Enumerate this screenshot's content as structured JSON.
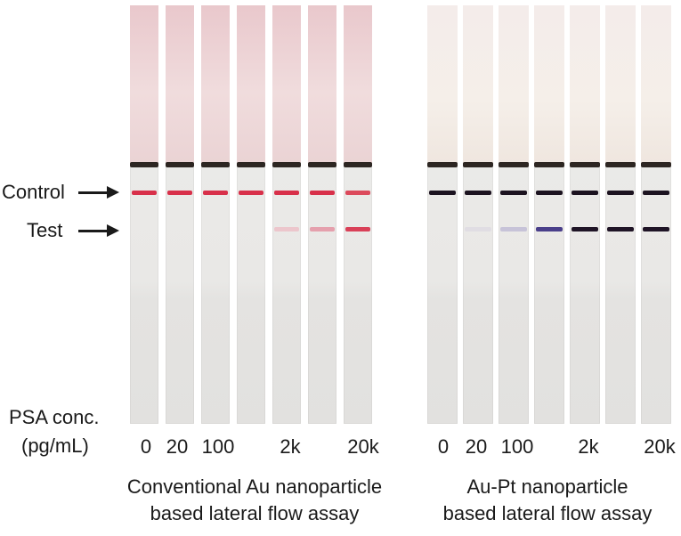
{
  "labels": {
    "control": "Control",
    "test": "Test",
    "psa_line1": "PSA conc.",
    "psa_line2": "(pg/mL)"
  },
  "concentration_labels": {
    "left": [
      "0",
      "20",
      "100",
      "2k",
      "20k"
    ],
    "right": [
      "0",
      "20",
      "100",
      "2k",
      "20k"
    ]
  },
  "captions": {
    "left_line1": "Conventional Au nanoparticle",
    "left_line2": "based lateral flow assay",
    "right_line1": "Au-Pt nanoparticle",
    "right_line2": "based lateral flow assay"
  },
  "strips": {
    "left": [
      {
        "control_color": "#d8304a",
        "test_color": ""
      },
      {
        "control_color": "#d8304a",
        "test_color": ""
      },
      {
        "control_color": "#d8304a",
        "test_color": ""
      },
      {
        "control_color": "#d8304a",
        "test_color": ""
      },
      {
        "control_color": "#d8304a",
        "test_color": "#ecc6cc"
      },
      {
        "control_color": "#d8304a",
        "test_color": "#e5a0ad"
      },
      {
        "control_color": "#dc4a5c",
        "test_color": "#d94058"
      }
    ],
    "right": [
      {
        "control_color": "#1c1320",
        "test_color": ""
      },
      {
        "control_color": "#1c1320",
        "test_color": "#e0dde3"
      },
      {
        "control_color": "#1c1320",
        "test_color": "#c7c3d8"
      },
      {
        "control_color": "#1c1320",
        "test_color": "#4a3f8a"
      },
      {
        "control_color": "#1c1320",
        "test_color": "#1f1426"
      },
      {
        "control_color": "#1c1320",
        "test_color": "#1f1426"
      },
      {
        "control_color": "#1c1320",
        "test_color": "#1f1426"
      }
    ]
  }
}
